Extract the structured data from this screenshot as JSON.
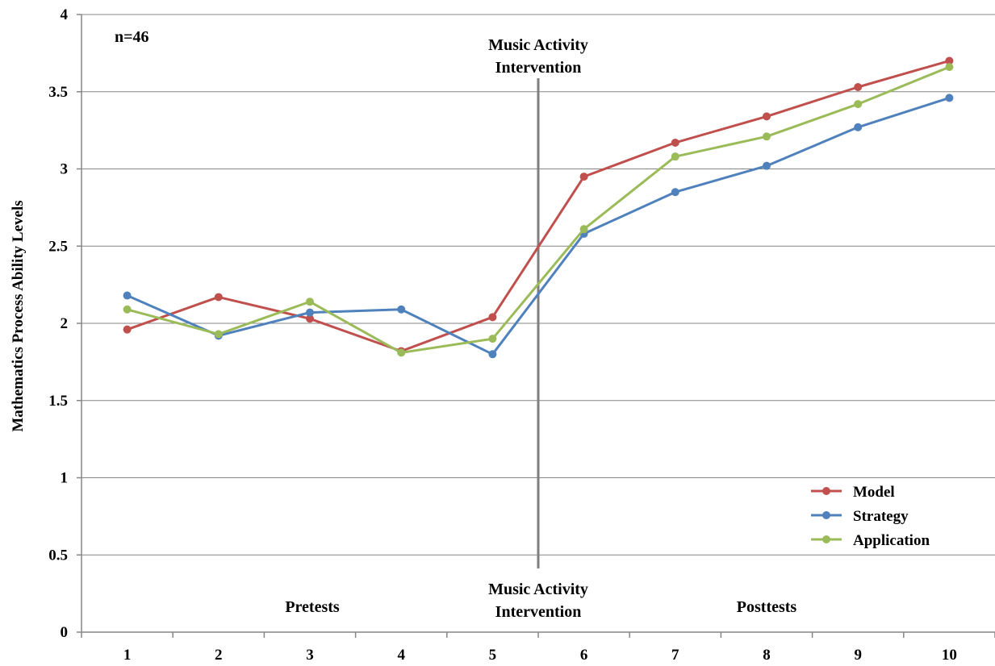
{
  "chart_data": {
    "type": "line",
    "ylabel": "Mathematics Process Ability Levels",
    "xlabel": "",
    "ylim": [
      0,
      4
    ],
    "yticks": [
      "0",
      "0.5",
      "1",
      "1.5",
      "2",
      "2.5",
      "3",
      "3.5",
      "4"
    ],
    "categories": [
      "1",
      "2",
      "3",
      "4",
      "5",
      "6",
      "7",
      "8",
      "9",
      "10"
    ],
    "grid": true,
    "legend_position": "bottom-right",
    "series": [
      {
        "name": "Model",
        "color": "#c0504d",
        "values": [
          1.96,
          2.17,
          2.03,
          1.82,
          2.04,
          2.95,
          3.17,
          3.34,
          3.53,
          3.7
        ]
      },
      {
        "name": "Strategy",
        "color": "#4f81bd",
        "values": [
          2.18,
          1.92,
          2.07,
          2.09,
          1.8,
          2.58,
          2.85,
          3.02,
          3.27,
          3.46
        ]
      },
      {
        "name": "Application",
        "color": "#9bbb59",
        "values": [
          2.09,
          1.93,
          2.14,
          1.81,
          1.9,
          2.61,
          3.08,
          3.21,
          3.42,
          3.66
        ]
      }
    ],
    "annotations": {
      "n_label": "n=46",
      "intervention_top_line1": "Music Activity",
      "intervention_top_line2": "Intervention",
      "intervention_bottom_line1": "Music Activity",
      "intervention_bottom_line2": "Intervention",
      "pretests": "Pretests",
      "posttests": "Posttests"
    },
    "intervention_between": [
      5,
      6
    ]
  }
}
